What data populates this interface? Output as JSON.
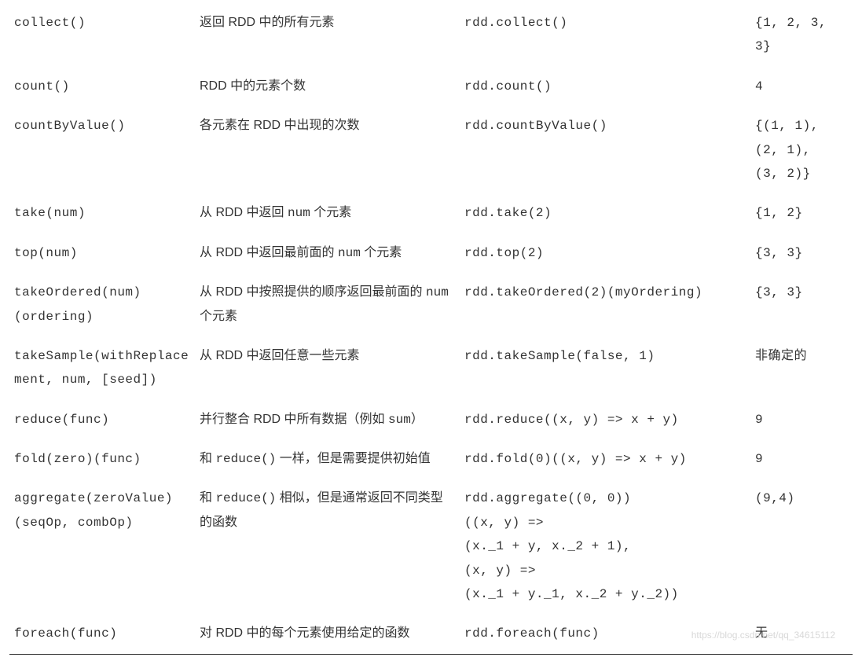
{
  "table": {
    "rows": [
      {
        "func": "collect()",
        "desc": "返回 RDD 中的所有元素",
        "example": "rdd.collect()",
        "result": "{1, 2, 3, 3}"
      },
      {
        "func": "count()",
        "desc": "RDD 中的元素个数",
        "example": "rdd.count()",
        "result": "4"
      },
      {
        "func": "countByValue()",
        "desc": "各元素在 RDD 中出现的次数",
        "example": "rdd.countByValue()",
        "result": "{(1, 1),\n(2, 1),\n(3, 2)}"
      },
      {
        "func": "take(num)",
        "desc_html": "从 RDD 中返回 <span class='desc-mono'>num</span> 个元素",
        "example": "rdd.take(2)",
        "result": "{1, 2}"
      },
      {
        "func": "top(num)",
        "desc_html": "从 RDD 中返回最前面的 <span class='desc-mono'>num</span> 个元素",
        "example": "rdd.top(2)",
        "result": "{3, 3}"
      },
      {
        "func": "takeOrdered(num)\n(ordering)",
        "desc_html": "从 RDD 中按照提供的顺序返回最前面的 <span class='desc-mono'>num</span> 个元素",
        "example": "rdd.takeOrdered(2)(myOrdering)",
        "result": "{3, 3}"
      },
      {
        "func": "takeSample(withReplacement, num, [seed])",
        "desc": "从 RDD 中返回任意一些元素",
        "example": "rdd.takeSample(false, 1)",
        "result": "非确定的",
        "result_cn": true
      },
      {
        "func": "reduce(func)",
        "desc_html": "并行整合 RDD 中所有数据（例如 <span class='desc-mono'>sum</span>）",
        "example": "rdd.reduce((x, y) => x + y)",
        "result": "9"
      },
      {
        "func": "fold(zero)(func)",
        "desc_html": "和 <span class='desc-mono'>reduce()</span> 一样，但是需要提供初始值",
        "example": "rdd.fold(0)((x, y) => x + y)",
        "result": "9"
      },
      {
        "func": "aggregate(zeroValue)\n(seqOp, combOp)",
        "desc_html": "和 <span class='desc-mono'>reduce()</span> 相似，但是通常返回不同类型的函数",
        "example": "rdd.aggregate((0, 0))\n((x, y) =>\n(x._1 + y, x._2 + 1),\n(x, y) =>\n(x._1 + y._1, x._2 + y._2))",
        "result": "(9,4)"
      },
      {
        "func": "foreach(func)",
        "desc": "对 RDD 中的每个元素使用给定的函数",
        "example": "rdd.foreach(func)",
        "result": "无",
        "result_cn": true,
        "last": true
      }
    ],
    "watermark": "https://blog.csdn.net/qq_34615112",
    "columns": {
      "func_width": 236,
      "desc_width": 337,
      "example_width": 370,
      "result_width": 130
    },
    "colors": {
      "text": "#333333",
      "background": "#ffffff",
      "border": "#333333",
      "watermark": "#d8d8d8"
    },
    "typography": {
      "body_font_size": 16,
      "body_line_height": 1.9,
      "mono_font": "Consolas, Monaco, Courier New, monospace",
      "cjk_font": "Microsoft YaHei, PingFang SC, sans-serif"
    }
  }
}
